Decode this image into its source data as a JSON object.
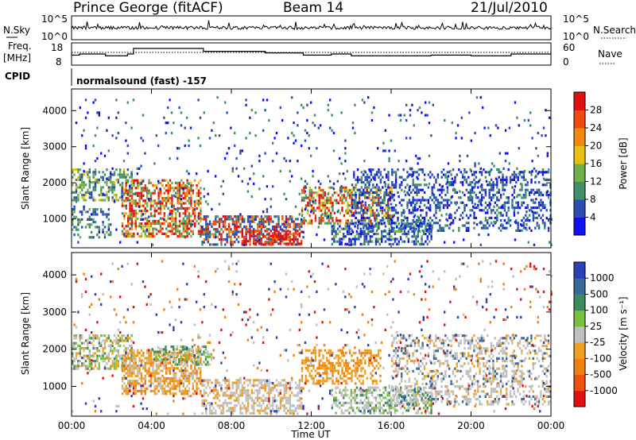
{
  "header": {
    "station": "Prince George (fitACF)",
    "beam": "Beam 14",
    "date": "21/Jul/2010"
  },
  "status_panels": {
    "nsky_label": "N.Sky",
    "nsearch_label": "N.Search",
    "freq_label_line1": "Freq.",
    "freq_label_line2": "[MHz]",
    "nave_label": "Nave",
    "cpid_label": "CPID",
    "cpid_value": "normalsound (fast) -157",
    "noise_ticks_left": [
      "10^5",
      "10^0"
    ],
    "noise_ticks_right": [
      "10^5",
      "10^0"
    ],
    "freq_ticks_left": [
      "18",
      "8"
    ],
    "nave_ticks_right": [
      "60",
      "0"
    ]
  },
  "colors": {
    "power_scale": [
      "#1010f0",
      "#2a4fb0",
      "#3f8f6a",
      "#6fb04a",
      "#e8c010",
      "#f08a10",
      "#f04a10",
      "#e01010"
    ],
    "velocity_scale": [
      "#2a3fb8",
      "#3a6a9a",
      "#3f8a5a",
      "#7ac040",
      "#c0c0c0",
      "#f0a020",
      "#f08010",
      "#f05010",
      "#e01010"
    ]
  },
  "chart_data": [
    {
      "type": "heatmap",
      "name": "power",
      "xlabel": "",
      "ylabel": "Slant Range [km]",
      "x_ticks": [
        "00:00",
        "04:00",
        "08:00",
        "12:00",
        "16:00",
        "20:00",
        "00:00"
      ],
      "y_ticks": [
        "1000",
        "2000",
        "3000",
        "4000"
      ],
      "ylim": [
        200,
        4600
      ],
      "xlim_hours": [
        0,
        24
      ],
      "colorbar_label": "Power [dB]",
      "colorbar_ticks": [
        "4",
        "8",
        "12",
        "16",
        "20",
        "24",
        "28"
      ],
      "colorbar_range": [
        0,
        32
      ]
    },
    {
      "type": "heatmap",
      "name": "velocity",
      "xlabel": "Time UT",
      "ylabel": "Slant Range [km]",
      "x_ticks": [
        "00:00",
        "04:00",
        "08:00",
        "12:00",
        "16:00",
        "20:00",
        "00:00"
      ],
      "y_ticks": [
        "1000",
        "2000",
        "3000",
        "4000"
      ],
      "ylim": [
        200,
        4600
      ],
      "xlim_hours": [
        0,
        24
      ],
      "colorbar_label": "Velocity [m s⁻¹]",
      "colorbar_ticks": [
        "1000",
        "500",
        "100",
        "25",
        "-25",
        "-100",
        "-500",
        "-1000"
      ]
    }
  ]
}
